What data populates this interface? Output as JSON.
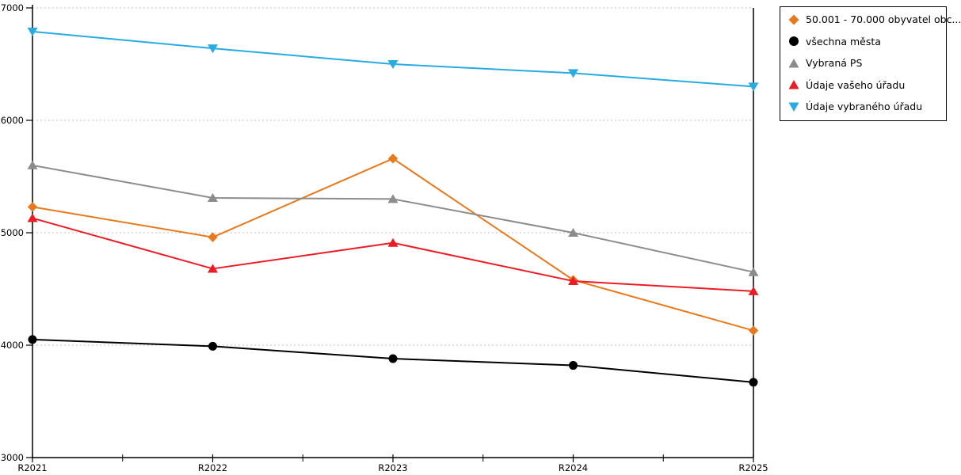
{
  "chart_data": {
    "type": "line",
    "title": "",
    "xlabel": "",
    "ylabel": "",
    "categories": [
      "R2021",
      "R2022",
      "R2023",
      "R2024",
      "R2025"
    ],
    "series": [
      {
        "name": "50.001 - 70.000 obyvatel obc...",
        "values": [
          5230,
          4960,
          5660,
          4580,
          4130
        ],
        "color": "#e8791d",
        "marker": "diamond"
      },
      {
        "name": "všechna města",
        "values": [
          4050,
          3990,
          3880,
          3820,
          3670
        ],
        "color": "#000000",
        "marker": "circle"
      },
      {
        "name": "Vybraná PS",
        "values": [
          5600,
          5310,
          5300,
          5000,
          4650
        ],
        "color": "#8c8c8c",
        "marker": "triangle-up"
      },
      {
        "name": "Údaje vašeho úřadu",
        "values": [
          5130,
          4680,
          4910,
          4570,
          4480
        ],
        "color": "#ed1b24",
        "marker": "triangle-up"
      },
      {
        "name": "Údaje vybraného úřadu",
        "values": [
          6790,
          6640,
          6500,
          6420,
          6300
        ],
        "color": "#29abe2",
        "marker": "triangle-down"
      }
    ],
    "y_axis": {
      "min": 3000,
      "max": 7000,
      "step": 1000,
      "tick_labels": [
        "3000",
        "4000",
        "5000",
        "6000",
        "7000"
      ]
    },
    "x_axis": {
      "tick_labels": [
        "R2021",
        "R2022",
        "R2023",
        "R2024",
        "R2025"
      ],
      "minor_ticks_between": true
    },
    "ylim": [
      3000,
      7000
    ],
    "grid": "horizontal-dotted",
    "grid_color": "#c0c0c0",
    "axis_color": "#000000",
    "legend_position": "top-right-outside",
    "legend_border_color": "#000000"
  }
}
